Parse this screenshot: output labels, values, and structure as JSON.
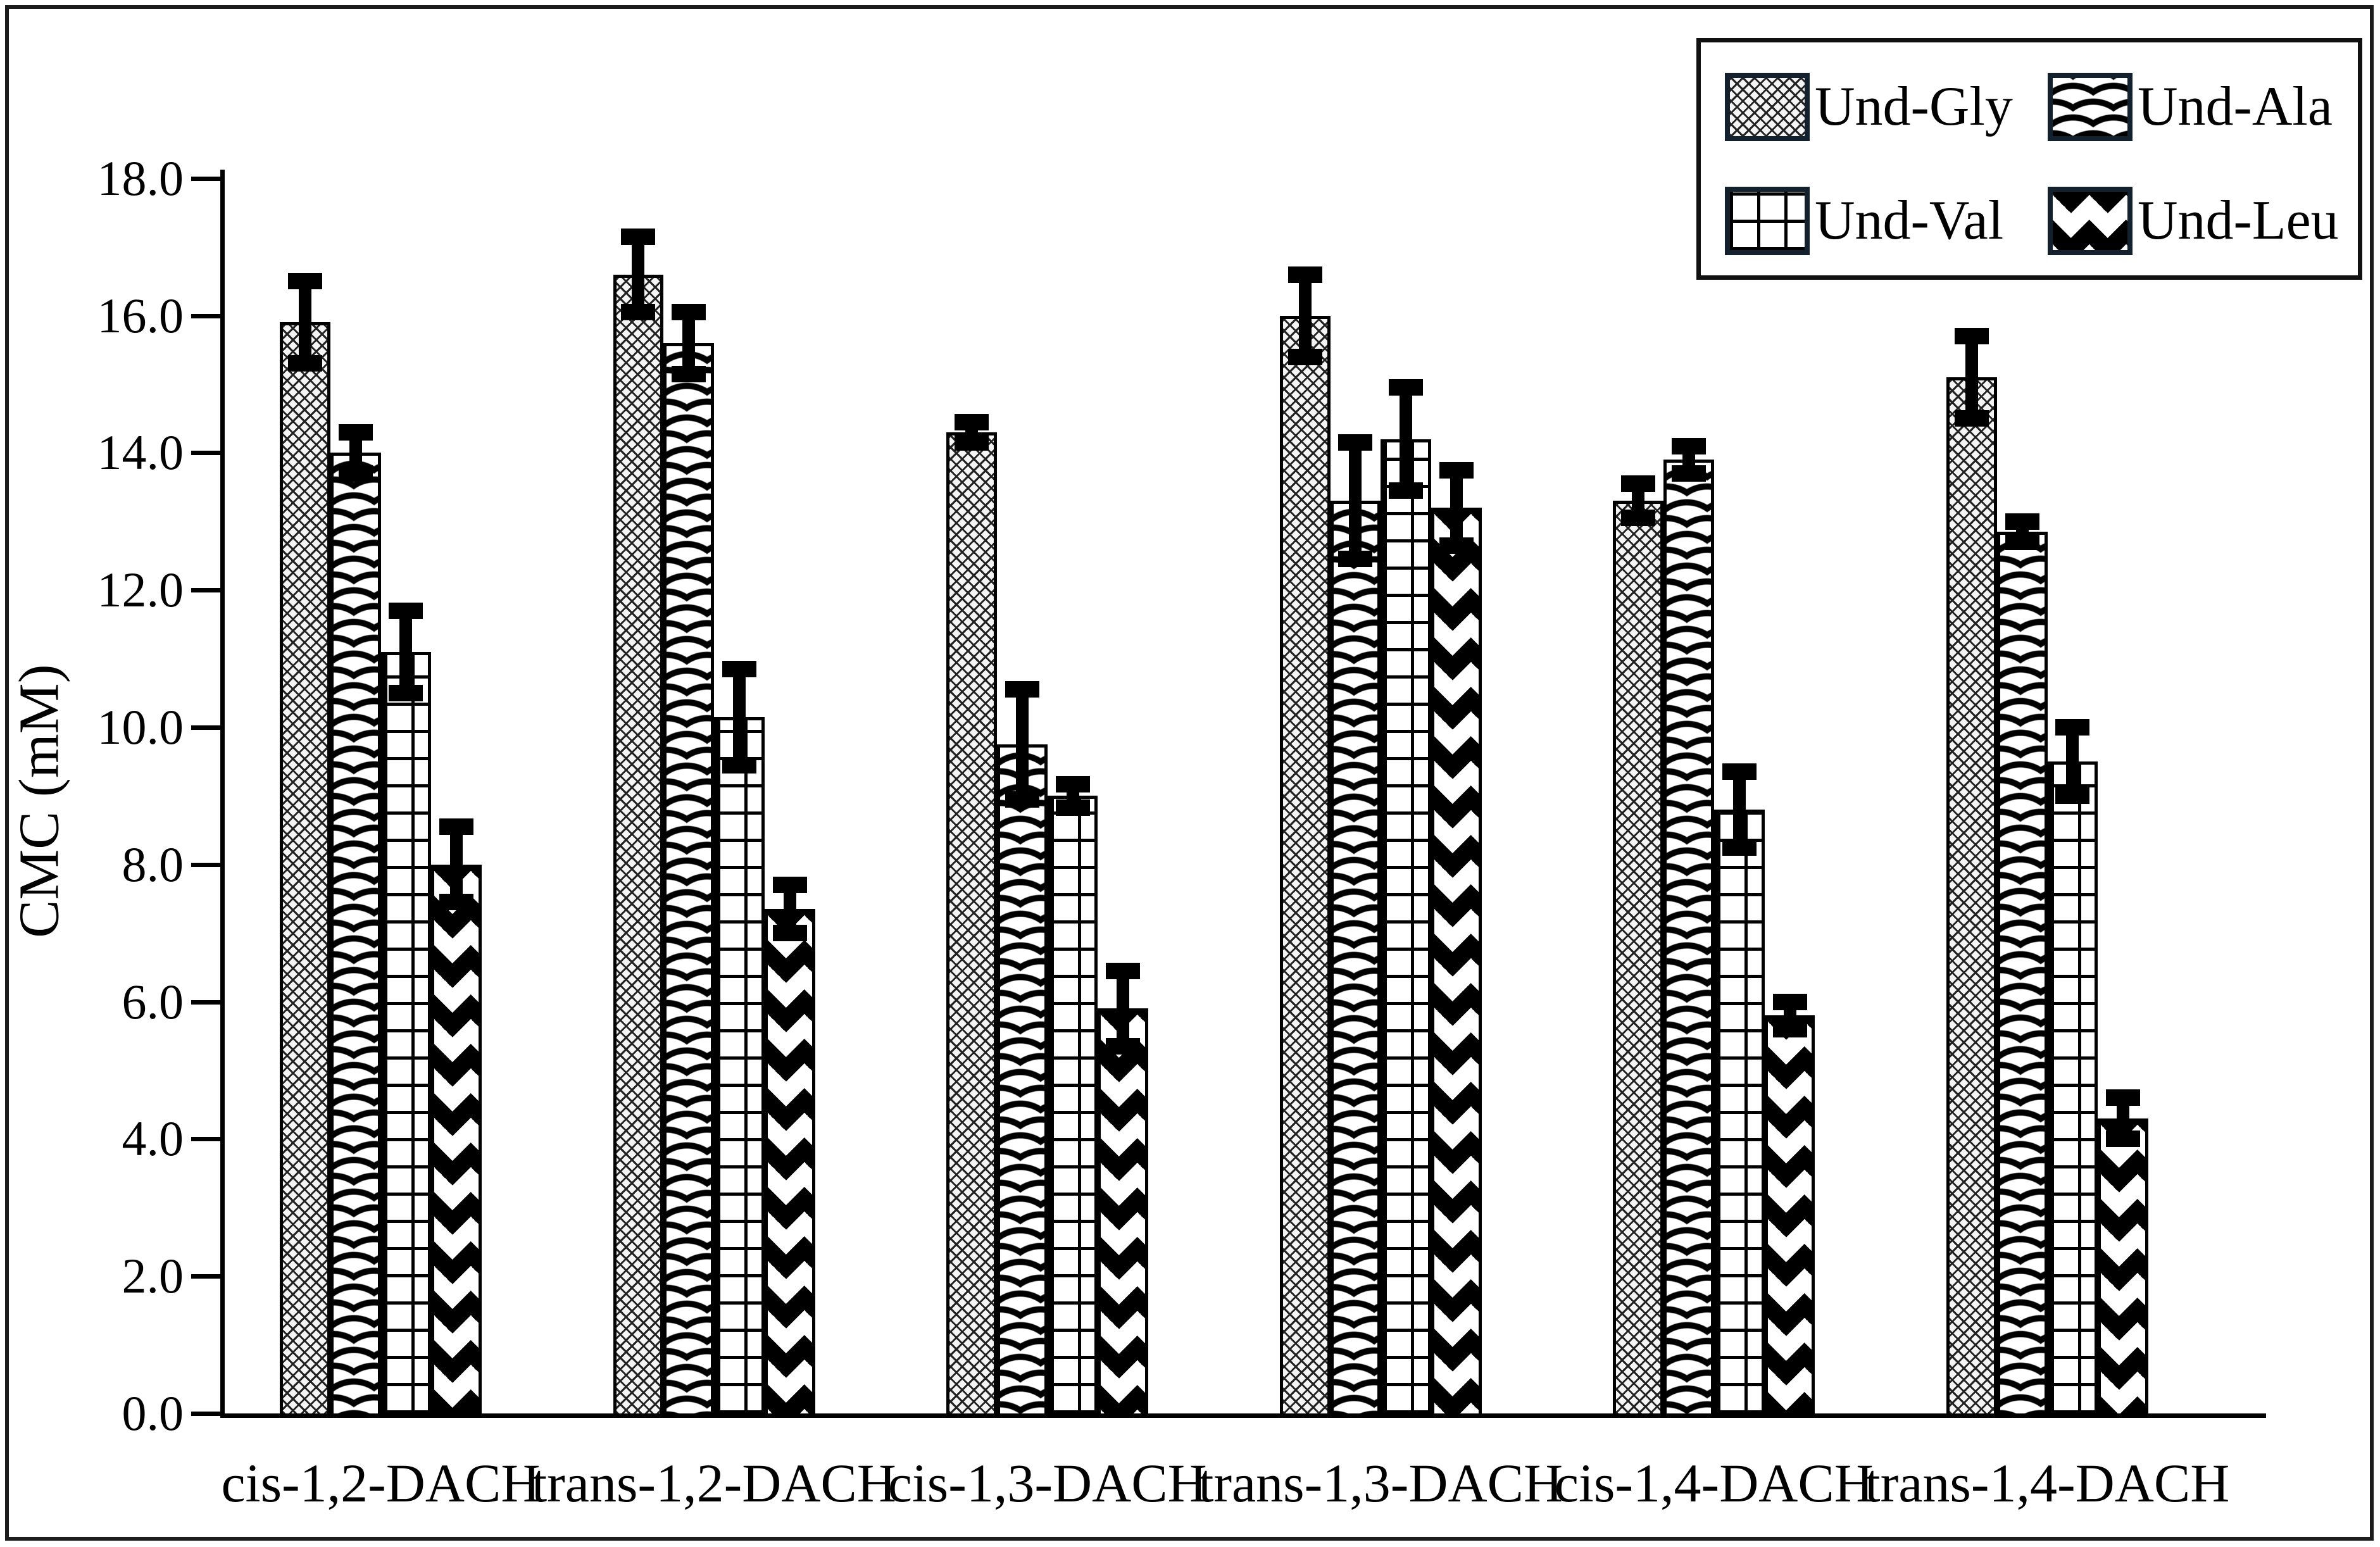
{
  "figure": {
    "background": "#ffffff",
    "border_color": "#1c1c1c",
    "ink_color": "#000000"
  },
  "chart_data": {
    "type": "bar",
    "title": "",
    "xlabel": "",
    "ylabel": "CMC (mM)",
    "ylim": [
      0,
      18
    ],
    "ytick_step": 2.0,
    "ytick_labels": [
      "0.0",
      "2.0",
      "4.0",
      "6.0",
      "8.0",
      "10.0",
      "12.0",
      "14.0",
      "16.0",
      "18.0"
    ],
    "grid": false,
    "legend_position": "top-right",
    "error_bars": true,
    "categories": [
      "cis-1,2-DACH",
      "trans-1,2-DACH",
      "cis-1,3-DACH",
      "trans-1,3-DACH",
      "cis-1,4-DACH",
      "trans-1,4-DACH"
    ],
    "series": [
      {
        "name": "Und-Gly",
        "pattern": "fine-crosshatch",
        "values": [
          15.9,
          16.6,
          14.3,
          16.0,
          13.3,
          15.1
        ],
        "errors": [
          0.6,
          0.55,
          0.15,
          0.6,
          0.25,
          0.6
        ]
      },
      {
        "name": "Und-Ala",
        "pattern": "fish-scales",
        "values": [
          14.0,
          15.6,
          9.75,
          13.3,
          13.9,
          12.85
        ],
        "errors": [
          0.3,
          0.45,
          0.8,
          0.85,
          0.2,
          0.15
        ]
      },
      {
        "name": "Und-Val",
        "pattern": "square-grid",
        "values": [
          11.1,
          10.15,
          9.0,
          14.2,
          8.8,
          9.5
        ],
        "errors": [
          0.6,
          0.7,
          0.17,
          0.75,
          0.55,
          0.5
        ]
      },
      {
        "name": "Und-Leu",
        "pattern": "black-diamonds",
        "values": [
          8.0,
          7.35,
          5.9,
          13.2,
          5.8,
          4.3
        ],
        "errors": [
          0.55,
          0.35,
          0.55,
          0.55,
          0.2,
          0.3
        ]
      }
    ]
  }
}
